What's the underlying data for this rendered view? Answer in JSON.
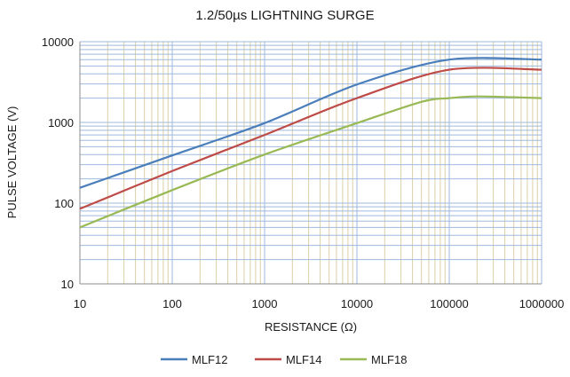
{
  "chart_data": {
    "type": "line",
    "title": "1.2/50µs LIGHTNING SURGE",
    "xlabel": "RESISTANCE (Ω)",
    "ylabel": "PULSE VOLTAGE (V)",
    "x_scale": "log",
    "y_scale": "log",
    "xlim": [
      10,
      1000000
    ],
    "ylim": [
      10,
      10000
    ],
    "x_ticks": [
      "10",
      "100",
      "1000",
      "10000",
      "100000",
      "1000000"
    ],
    "y_ticks": [
      "10",
      "100",
      "1000",
      "10000"
    ],
    "grid": true,
    "legend_position": "bottom",
    "series": [
      {
        "name": "MLF12",
        "color": "#4a7ebb",
        "points": [
          [
            10,
            155
          ],
          [
            100,
            390
          ],
          [
            1000,
            980
          ],
          [
            10000,
            2950
          ],
          [
            100000,
            6000
          ],
          [
            1000000,
            6000
          ]
        ]
      },
      {
        "name": "MLF14",
        "color": "#be4b48",
        "points": [
          [
            10,
            85
          ],
          [
            100,
            250
          ],
          [
            1000,
            700
          ],
          [
            10000,
            2000
          ],
          [
            100000,
            4500
          ],
          [
            1000000,
            4500
          ]
        ]
      },
      {
        "name": "MLF18",
        "color": "#98b954",
        "points": [
          [
            10,
            50
          ],
          [
            100,
            145
          ],
          [
            1000,
            400
          ],
          [
            10000,
            980
          ],
          [
            50000,
            1800
          ],
          [
            100000,
            2000
          ],
          [
            200000,
            2100
          ],
          [
            500000,
            2050
          ],
          [
            1000000,
            2000
          ]
        ]
      }
    ]
  },
  "colors": {
    "minor_grid_x": "#d9cfa6",
    "grid_y": "#9fb9de",
    "axis": "#8c8c8c"
  }
}
